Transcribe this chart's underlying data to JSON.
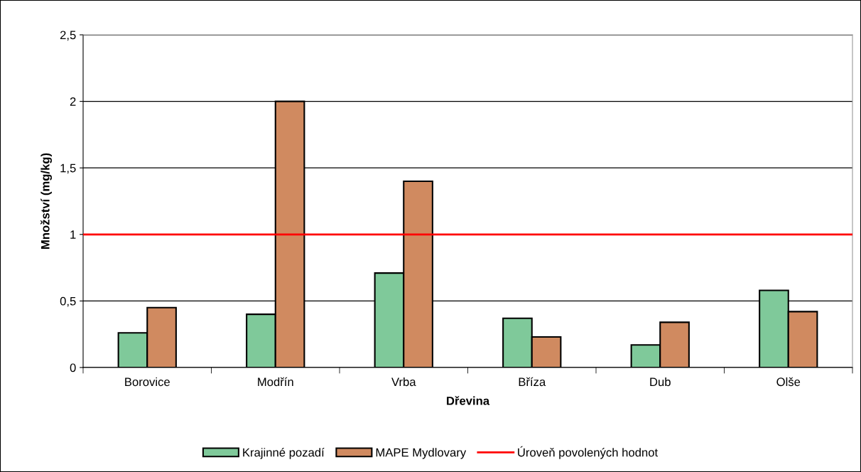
{
  "chart_data": {
    "type": "bar",
    "xlabel": "Dřevina",
    "ylabel": "Množství (mg/kg)",
    "categories": [
      "Borovice",
      "Modřín",
      "Vrba",
      "Bříza",
      "Dub",
      "Olše"
    ],
    "series": [
      {
        "name": "Krajinné pozadí",
        "color": "#7fc99a",
        "values": [
          0.26,
          0.4,
          0.71,
          0.37,
          0.17,
          0.58
        ]
      },
      {
        "name": "MAPE Mydlovary",
        "color": "#d08a60",
        "values": [
          0.45,
          2.0,
          1.4,
          0.23,
          0.34,
          0.42
        ]
      }
    ],
    "ref_lines": [
      {
        "axis": "y",
        "value": 1,
        "label": "Úroveň povolených hodnot",
        "color": "#ff0000",
        "line_style": "solid"
      }
    ],
    "ylim": [
      0,
      2.5
    ],
    "yticks": [
      {
        "value": 0,
        "label": "0"
      },
      {
        "value": 0.5,
        "label": "0,5"
      },
      {
        "value": 1,
        "label": "1"
      },
      {
        "value": 1.5,
        "label": "1,5"
      },
      {
        "value": 2,
        "label": "2"
      },
      {
        "value": 2.5,
        "label": "2,5"
      }
    ],
    "grid": "y",
    "legend": "bottom"
  }
}
